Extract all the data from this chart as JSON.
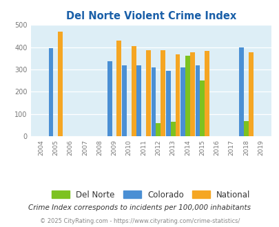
{
  "title": "Del Norte Violent Crime Index",
  "years": [
    2004,
    2005,
    2006,
    2007,
    2008,
    2009,
    2010,
    2011,
    2012,
    2013,
    2014,
    2015,
    2016,
    2017,
    2018,
    2019
  ],
  "del_norte": {
    "2012": 60,
    "2013": 65,
    "2014": 363,
    "2015": 250,
    "2018": 68
  },
  "colorado": {
    "2005": 395,
    "2009": 338,
    "2010": 320,
    "2011": 320,
    "2012": 308,
    "2013": 295,
    "2014": 308,
    "2015": 320,
    "2018": 400
  },
  "national": {
    "2005": 470,
    "2009": 430,
    "2010": 405,
    "2011": 388,
    "2012": 388,
    "2013": 367,
    "2014": 378,
    "2015": 383,
    "2018": 378
  },
  "color_del_norte": "#7dc220",
  "color_colorado": "#4a8fd4",
  "color_national": "#f5a623",
  "bg_color": "#ddeef6",
  "ylim": [
    0,
    500
  ],
  "yticks": [
    0,
    100,
    200,
    300,
    400,
    500
  ],
  "subtitle": "Crime Index corresponds to incidents per 100,000 inhabitants",
  "footer": "© 2025 CityRating.com - https://www.cityrating.com/crime-statistics/",
  "title_color": "#1a5fa8",
  "subtitle_color": "#333333",
  "footer_color": "#888888",
  "bar_width": 0.32
}
